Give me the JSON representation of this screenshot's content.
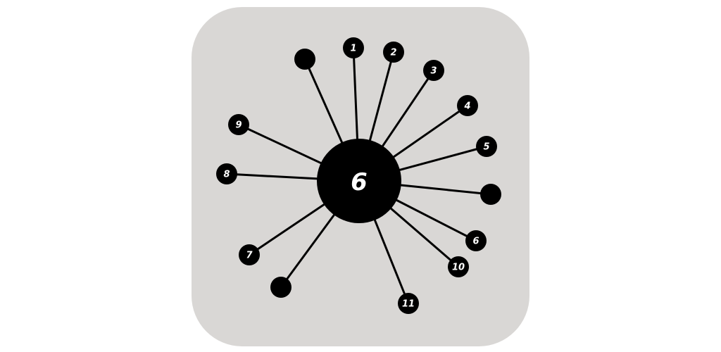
{
  "game": {
    "core": {
      "label": "6"
    },
    "pins": [
      {
        "label": "1"
      },
      {
        "label": "2"
      },
      {
        "label": "3"
      },
      {
        "label": "4"
      },
      {
        "label": "5"
      },
      {
        "label": ""
      },
      {
        "label": "6"
      },
      {
        "label": "10"
      },
      {
        "label": "11"
      },
      {
        "label": ""
      },
      {
        "label": "7"
      },
      {
        "label": "8"
      },
      {
        "label": "9"
      },
      {
        "label": ""
      }
    ],
    "colors": {
      "background": "#ffffff",
      "card": "#d9d7d5",
      "ink": "#000000",
      "text": "#ffffff"
    }
  }
}
